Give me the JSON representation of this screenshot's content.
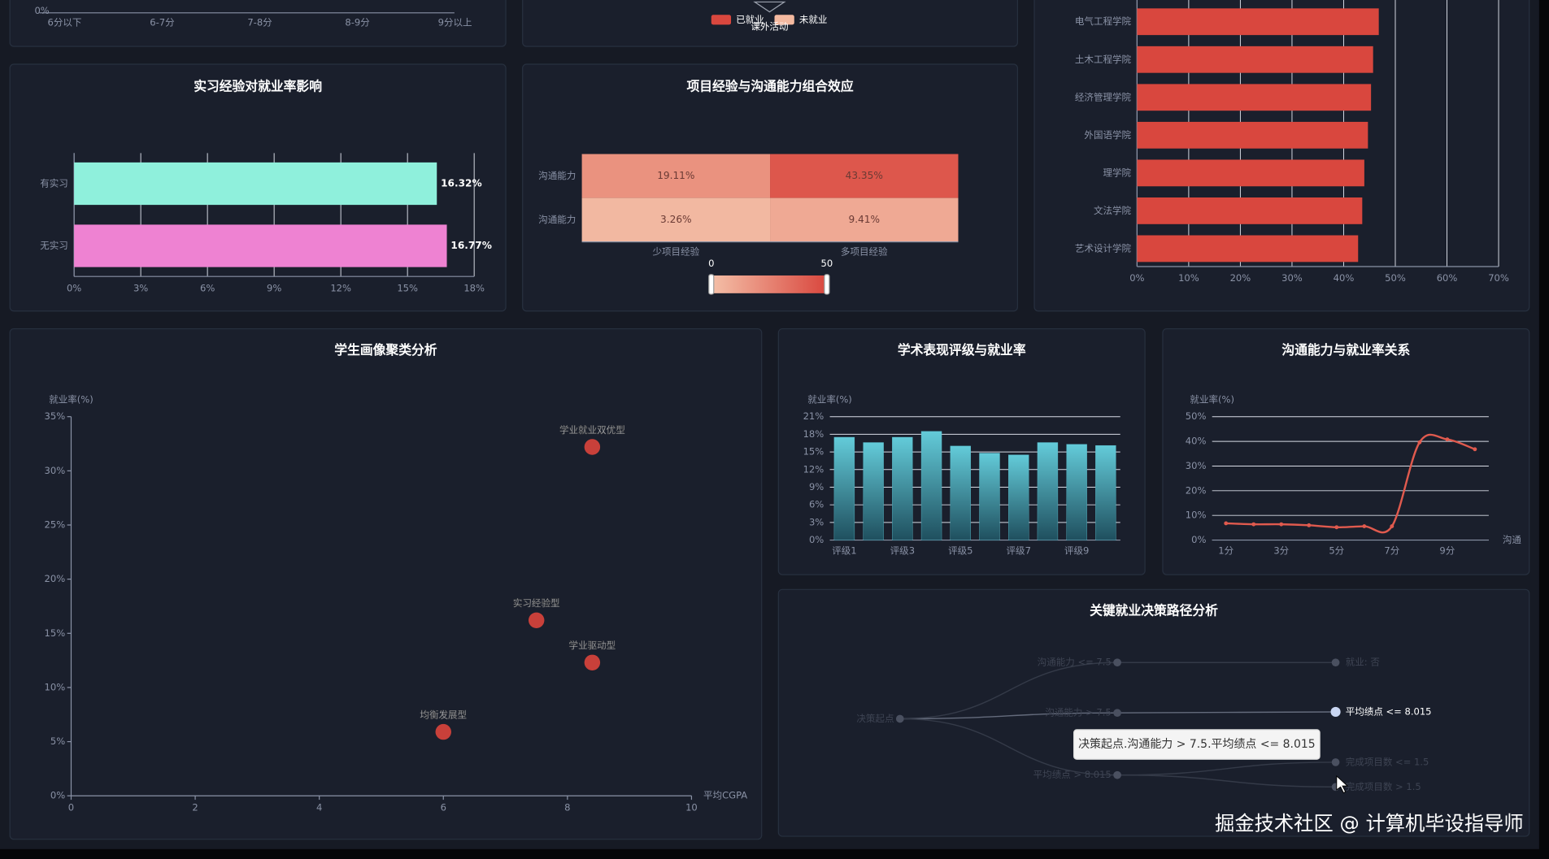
{
  "chart_data": [
    {
      "type": "bar",
      "orientation": "vertical",
      "categories": [
        "6分以下",
        "6-7分",
        "7-8分",
        "8-9分",
        "9分以上"
      ],
      "yticks": [
        {
          "value": 0,
          "label": "0%"
        }
      ]
    },
    {
      "type": "bar",
      "orientation": "vertical",
      "stacked": true,
      "x_label": "课外活动",
      "series": [
        {
          "name": "已就业",
          "color": "#d9473e"
        },
        {
          "name": "未就业",
          "color": "#f4b9a0"
        }
      ]
    },
    {
      "type": "bar",
      "orientation": "horizontal",
      "categories": [
        "电气工程学院",
        "土木工程学院",
        "经济管理学院",
        "外国语学院",
        "理学院",
        "文法学院",
        "艺术设计学院"
      ],
      "values": [
        46.8,
        45.7,
        45.3,
        44.7,
        44.0,
        43.6,
        42.8
      ],
      "color": "#d9473e",
      "xlim": [
        0,
        70
      ],
      "xticks": [
        {
          "value": 0,
          "label": "0%"
        },
        {
          "value": 10,
          "label": "10%"
        },
        {
          "value": 20,
          "label": "20%"
        },
        {
          "value": 30,
          "label": "30%"
        },
        {
          "value": 40,
          "label": "40%"
        },
        {
          "value": 50,
          "label": "50%"
        },
        {
          "value": 60,
          "label": "60%"
        },
        {
          "value": 70,
          "label": "70%"
        }
      ],
      "grid": true
    },
    {
      "type": "bar",
      "orientation": "horizontal",
      "title": "实习经验对就业率影响",
      "categories": [
        "有实习",
        "无实习"
      ],
      "values": [
        16.32,
        16.77
      ],
      "value_labels": [
        "16.32%",
        "16.77%"
      ],
      "colors": [
        "#8ff0dc",
        "#ee82d2"
      ],
      "xlim": [
        0,
        18
      ],
      "xticks": [
        {
          "value": 0,
          "label": "0%"
        },
        {
          "value": 3,
          "label": "3%"
        },
        {
          "value": 6,
          "label": "6%"
        },
        {
          "value": 9,
          "label": "9%"
        },
        {
          "value": 12,
          "label": "12%"
        },
        {
          "value": 15,
          "label": "15%"
        },
        {
          "value": 18,
          "label": "18%"
        }
      ],
      "grid": true
    },
    {
      "type": "heatmap",
      "title": "项目经验与沟通能力组合效应",
      "x_categories": [
        "少项目经验",
        "多项目经验"
      ],
      "y_categories": [
        "沟通能力",
        "沟通能力"
      ],
      "values": [
        [
          19.11,
          43.35
        ],
        [
          3.26,
          9.41
        ]
      ],
      "value_labels": [
        [
          "19.11%",
          "43.35%"
        ],
        [
          "3.26%",
          "9.41%"
        ]
      ],
      "colorscale": {
        "range": [
          0,
          50
        ],
        "colors": [
          "#f4c0a8",
          "#d9473e"
        ]
      }
    },
    {
      "type": "scatter",
      "title": "学生画像聚类分析",
      "x_label": "平均CGPA",
      "y_label": "就业率(%)",
      "color": "#c8403a",
      "points": [
        {
          "label": "学业就业双优型",
          "x": 8.4,
          "y": 32.2
        },
        {
          "label": "实习经验型",
          "x": 7.5,
          "y": 16.2
        },
        {
          "label": "学业驱动型",
          "x": 8.4,
          "y": 12.3
        },
        {
          "label": "均衡发展型",
          "x": 6.0,
          "y": 5.9
        }
      ],
      "xlim": [
        0,
        10
      ],
      "xticks": [
        0,
        2,
        4,
        6,
        8,
        10
      ],
      "ylim": [
        0,
        35
      ],
      "yticks": [
        {
          "value": 0,
          "label": "0%"
        },
        {
          "value": 5,
          "label": "5%"
        },
        {
          "value": 10,
          "label": "10%"
        },
        {
          "value": 15,
          "label": "15%"
        },
        {
          "value": 20,
          "label": "20%"
        },
        {
          "value": 25,
          "label": "25%"
        },
        {
          "value": 30,
          "label": "30%"
        },
        {
          "value": 35,
          "label": "35%"
        }
      ]
    },
    {
      "type": "bar",
      "orientation": "vertical",
      "title": "学术表现评级与就业率",
      "y_label": "就业率(%)",
      "categories": [
        "评级1",
        null,
        "评级3",
        null,
        "评级5",
        null,
        "评级7",
        null,
        "评级9",
        null
      ],
      "values": [
        17.5,
        16.6,
        17.5,
        18.5,
        16.0,
        14.8,
        14.5,
        16.6,
        16.3,
        16.1
      ],
      "color": "#5ec4d4",
      "ylim": [
        0,
        21
      ],
      "yticks": [
        {
          "value": 0,
          "label": "0%"
        },
        {
          "value": 3,
          "label": "3%"
        },
        {
          "value": 6,
          "label": "6%"
        },
        {
          "value": 9,
          "label": "9%"
        },
        {
          "value": 12,
          "label": "12%"
        },
        {
          "value": 15,
          "label": "15%"
        },
        {
          "value": 18,
          "label": "18%"
        },
        {
          "value": 21,
          "label": "21%"
        }
      ],
      "grid": true
    },
    {
      "type": "line",
      "title": "沟通能力与就业率关系",
      "y_label": "就业率(%)",
      "x_label": "沟通",
      "categories": [
        "1分",
        null,
        "3分",
        null,
        "5分",
        null,
        "7分",
        null,
        "9分",
        null
      ],
      "values": [
        6.8,
        6.4,
        6.4,
        6.0,
        5.2,
        5.6,
        5.6,
        39.6,
        40.8,
        36.8
      ],
      "color": "#e05a4e",
      "ylim": [
        0,
        50
      ],
      "yticks": [
        {
          "value": 0,
          "label": "0%"
        },
        {
          "value": 10,
          "label": "10%"
        },
        {
          "value": 20,
          "label": "20%"
        },
        {
          "value": 30,
          "label": "30%"
        },
        {
          "value": 40,
          "label": "40%"
        },
        {
          "value": 50,
          "label": "50%"
        }
      ],
      "grid": true
    },
    {
      "type": "tree",
      "title": "关键就业决策路径分析",
      "tooltip": "决策起点.沟通能力 > 7.5.平均绩点 <= 8.015",
      "root": {
        "label": "决策起点",
        "children": [
          {
            "label": "沟通能力 <= 7.5",
            "children": [
              {
                "label": "就业: 否"
              }
            ]
          },
          {
            "label": "沟通能力 > 7.5",
            "children": [
              {
                "label": "平均绩点 <= 8.015"
              }
            ]
          },
          {
            "label": "平均绩点 > 8.015",
            "children": [
              {
                "label": "完成项目数 <= 1.5"
              },
              {
                "label": "完成项目数 > 1.5"
              }
            ]
          }
        ]
      }
    }
  ],
  "watermark": "掘金技术社区 @ 计算机毕设指导师"
}
